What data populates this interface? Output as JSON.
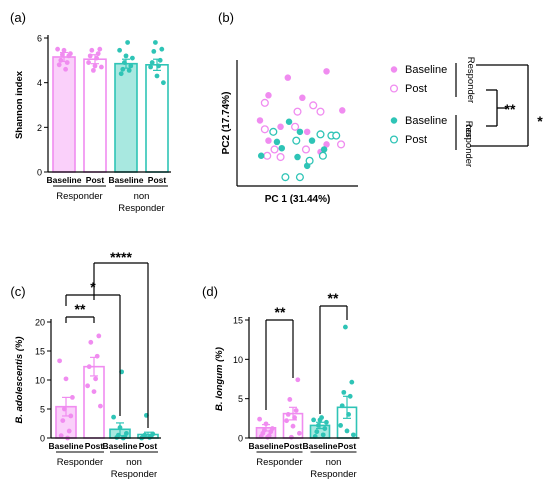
{
  "colors": {
    "pink": "#f08cf0",
    "pink_fill": "#fad0fa",
    "teal": "#2ec4b6",
    "teal_fill": "#a8e8e0"
  },
  "chart_data": [
    {
      "panel": "(a)",
      "type": "bar",
      "ylabel": "Shannon index",
      "ylim": [
        0,
        6
      ],
      "yticks": [
        0,
        2,
        4,
        6
      ],
      "categories": [
        "Baseline",
        "Post",
        "Baseline",
        "Post"
      ],
      "groups": [
        "Responder",
        "non\nResponder"
      ],
      "values": [
        5.15,
        5.05,
        4.85,
        4.8
      ],
      "errors": [
        0.2,
        0.2,
        0.2,
        0.25
      ],
      "points": [
        [
          5.5,
          5.45,
          5.3,
          5.25,
          5.2,
          5.0,
          4.9,
          4.8,
          4.6
        ],
        [
          5.5,
          5.45,
          5.3,
          5.2,
          5.1,
          4.9,
          4.75,
          4.7,
          4.55
        ],
        [
          5.8,
          5.45,
          5.2,
          5.1,
          4.9,
          4.75,
          4.6,
          4.55,
          4.4
        ],
        [
          5.8,
          5.5,
          5.4,
          5.0,
          4.9,
          4.75,
          4.7,
          4.3,
          4.0
        ]
      ]
    },
    {
      "panel": "(b)",
      "type": "scatter",
      "xlabel": "PC 1 (31.44%)",
      "ylabel": "PC2 (17.74%)",
      "legend": [
        "Baseline",
        "Post",
        "Baseline",
        "Post"
      ],
      "groups": [
        "Responder",
        "non\nResponder"
      ],
      "significance": [
        "**",
        "*"
      ],
      "series": [
        {
          "name": "Baseline",
          "points": [
            [
              0.42,
              0.14
            ],
            [
              0.74,
              0.09
            ],
            [
              0.26,
              0.28
            ],
            [
              0.54,
              0.3
            ],
            [
              0.19,
              0.48
            ],
            [
              0.87,
              0.4
            ],
            [
              0.36,
              0.53
            ],
            [
              0.58,
              0.57
            ],
            [
              0.26,
              0.64
            ],
            [
              0.74,
              0.67
            ],
            [
              0.69,
              0.73
            ]
          ]
        },
        {
          "name": "Post",
          "points": [
            [
              0.23,
              0.34
            ],
            [
              0.63,
              0.36
            ],
            [
              0.5,
              0.41
            ],
            [
              0.69,
              0.41
            ],
            [
              0.23,
              0.55
            ],
            [
              0.48,
              0.53
            ],
            [
              0.31,
              0.71
            ],
            [
              0.57,
              0.71
            ],
            [
              0.86,
              0.67
            ],
            [
              0.25,
              0.76
            ],
            [
              0.36,
              0.77
            ]
          ]
        },
        {
          "name": "Baseline",
          "points": [
            [
              0.43,
              0.49
            ],
            [
              0.52,
              0.57
            ],
            [
              0.33,
              0.65
            ],
            [
              0.62,
              0.64
            ],
            [
              0.37,
              0.7
            ],
            [
              0.5,
              0.77
            ],
            [
              0.2,
              0.76
            ],
            [
              0.72,
              0.71
            ],
            [
              0.58,
              0.84
            ]
          ]
        },
        {
          "name": "Post",
          "points": [
            [
              0.3,
              0.57
            ],
            [
              0.49,
              0.64
            ],
            [
              0.78,
              0.6
            ],
            [
              0.82,
              0.6
            ],
            [
              0.69,
              0.59
            ],
            [
              0.71,
              0.76
            ],
            [
              0.6,
              0.8
            ],
            [
              0.4,
              0.93
            ],
            [
              0.52,
              0.93
            ]
          ]
        }
      ]
    },
    {
      "panel": "(c)",
      "type": "bar",
      "ylabel": "B. adolescentis (%)",
      "ylim": [
        0,
        20
      ],
      "yticks": [
        0,
        5,
        10,
        15,
        20
      ],
      "categories": [
        "Baseline",
        "Post",
        "Baseline",
        "Post"
      ],
      "groups": [
        "Responder",
        "non\nResponder"
      ],
      "values": [
        5.4,
        12.3,
        1.5,
        0.6
      ],
      "errors": [
        1.6,
        1.6,
        1.1,
        0.4
      ],
      "points": [
        [
          13.3,
          10.2,
          7.0,
          5.0,
          3.8,
          3.0,
          1.2,
          0.4,
          0.0
        ],
        [
          17.6,
          16.5,
          14.1,
          12.3,
          10.2,
          9.0,
          8.0,
          5.5
        ],
        [
          11.4,
          3.6,
          1.8,
          0.8,
          0.5,
          0.2,
          0.1,
          0.0
        ],
        [
          3.9,
          0.7,
          0.5,
          0.3,
          0.2,
          0.1,
          0.0
        ]
      ],
      "significance": [
        "**",
        "*",
        "****"
      ]
    },
    {
      "panel": "(d)",
      "type": "bar",
      "ylabel": "B. longum (%)",
      "ylim": [
        0,
        15
      ],
      "yticks": [
        0,
        5,
        10,
        15
      ],
      "categories": [
        "Baseline",
        "Post",
        "Baseline",
        "Post"
      ],
      "groups": [
        "Responder",
        "non\nResponder"
      ],
      "values": [
        1.3,
        3.1,
        1.6,
        3.9
      ],
      "errors": [
        0.4,
        0.8,
        0.4,
        1.4
      ],
      "points": [
        [
          2.4,
          1.8,
          1.2,
          1.0,
          0.8,
          0.6,
          0.3,
          0.2,
          0.1
        ],
        [
          7.4,
          4.9,
          3.5,
          3.0,
          2.6,
          2.2,
          1.5,
          0.6,
          0.1
        ],
        [
          2.6,
          2.3,
          2.3,
          2.0,
          1.6,
          1.2,
          0.8,
          0.4,
          0.2
        ],
        [
          14.1,
          7.1,
          5.8,
          5.3,
          4.1,
          3.0,
          1.6,
          0.9,
          0.4
        ]
      ],
      "significance": [
        "**",
        "**"
      ]
    }
  ]
}
